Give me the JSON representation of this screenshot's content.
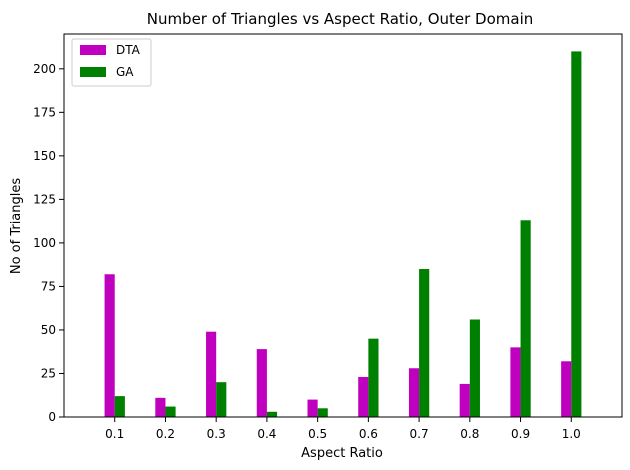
{
  "chart_data": {
    "type": "bar",
    "title": "Number of Triangles vs Aspect Ratio, Outer Domain",
    "xlabel": "Aspect Ratio",
    "ylabel": "No of Triangles",
    "categories": [
      "0.1",
      "0.2",
      "0.3",
      "0.4",
      "0.5",
      "0.6",
      "0.7",
      "0.8",
      "0.9",
      "1.0"
    ],
    "series": [
      {
        "name": "DTA",
        "color": "#bf00bf",
        "values": [
          82,
          11,
          49,
          39,
          10,
          23,
          28,
          19,
          40,
          32
        ]
      },
      {
        "name": "GA",
        "color": "#008000",
        "values": [
          12,
          6,
          20,
          3,
          5,
          45,
          85,
          56,
          113,
          210
        ]
      }
    ],
    "ylim": [
      0,
      220
    ],
    "yticks": [
      0,
      25,
      50,
      75,
      100,
      125,
      150,
      175,
      200
    ],
    "legend_position": "top-left",
    "grid": false
  }
}
